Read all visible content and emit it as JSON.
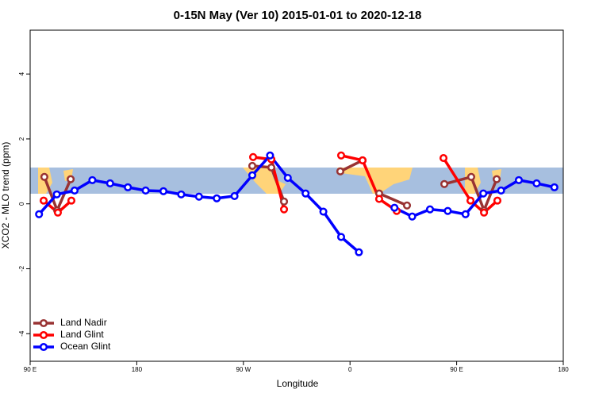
{
  "chart_data": {
    "type": "line",
    "title": "0-15N May (Ver 10)   2015-01-01 to 2020-12-18",
    "x_label": "Longitude",
    "y_label": "XCO2 - MLO trend (ppm)",
    "xlim": [
      90,
      540
    ],
    "ylim": [
      -4.85,
      5.35
    ],
    "xticks": [
      {
        "value": 90,
        "label": "90 E"
      },
      {
        "value": 180,
        "label": "180"
      },
      {
        "value": 270,
        "label": "90 W"
      },
      {
        "value": 360,
        "label": "0"
      },
      {
        "value": 450,
        "label": "90 E"
      },
      {
        "value": 540,
        "label": "180"
      }
    ],
    "yticks": [
      -4,
      -2,
      0,
      2,
      4
    ],
    "legend": "bottom-left",
    "series": [
      {
        "name": "Land Nadir",
        "color": "#993333",
        "x": [
          102,
          112.8,
          124.2,
          null,
          277.5,
          293.6,
          304.3,
          null,
          351.8,
          370.6,
          null,
          384.6,
          408.1,
          null,
          439.6,
          462.3,
          473.1,
          483.8
        ],
        "values": [
          0.83,
          -0.2,
          0.76,
          null,
          1.17,
          1.12,
          0.07,
          null,
          1.0,
          1.34,
          null,
          0.32,
          -0.05,
          null,
          0.61,
          0.83,
          -0.2,
          0.76
        ]
      },
      {
        "name": "Land Glint",
        "color": "#ff0000",
        "x": [
          101.4,
          113.4,
          124.8,
          null,
          278.2,
          293.6,
          304.3,
          null,
          352.5,
          370.6,
          384.6,
          399.4,
          null,
          438.9,
          461.7,
          473.1,
          484.4
        ],
        "values": [
          0.1,
          -0.27,
          0.1,
          null,
          1.44,
          1.37,
          -0.17,
          null,
          1.49,
          1.34,
          0.15,
          -0.22,
          null,
          1.41,
          0.1,
          -0.27,
          0.1
        ]
      },
      {
        "name": "Ocean Glint",
        "color": "#0000ff",
        "x": [
          97.5,
          112.5,
          127.5,
          142.5,
          157.5,
          172.5,
          187.5,
          202.5,
          217.5,
          232.5,
          247.5,
          262.5,
          277.5,
          292.5,
          307.5,
          322.5,
          337.5,
          352.5,
          367.5,
          null,
          397.5,
          412.5,
          427.5,
          442.5,
          457.5,
          472.5,
          487.5,
          502.5,
          517.5,
          532.5
        ],
        "values": [
          -0.32,
          0.29,
          0.41,
          0.73,
          0.63,
          0.51,
          0.41,
          0.39,
          0.29,
          0.22,
          0.17,
          0.24,
          0.88,
          1.49,
          0.8,
          0.32,
          -0.24,
          -1.02,
          -1.49,
          null,
          -0.12,
          -0.39,
          -0.17,
          -0.22,
          -0.32,
          0.32,
          0.41,
          0.73,
          0.63,
          0.51
        ]
      }
    ]
  }
}
